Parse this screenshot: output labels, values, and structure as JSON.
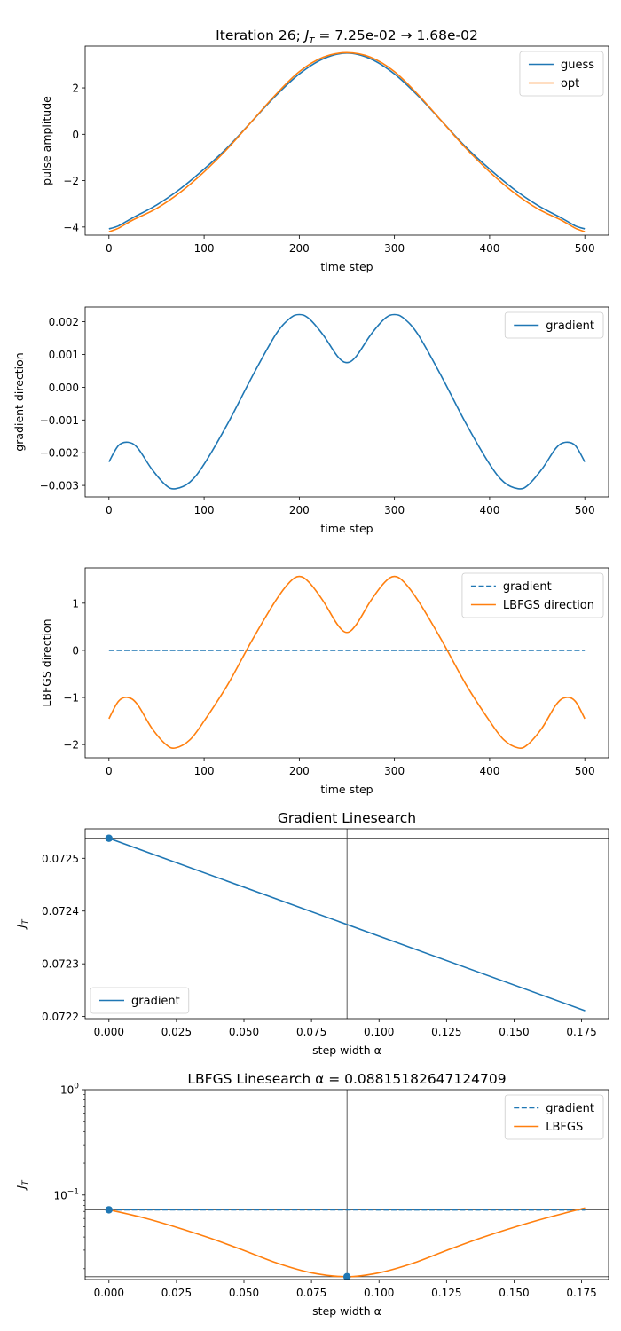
{
  "colors": {
    "blue": "#1f77b4",
    "orange": "#ff7f0e",
    "ref": "#333333"
  },
  "chart_data": [
    {
      "type": "line",
      "title_main": "Iteration 26; ",
      "title_sym": "J",
      "title_sub": "T",
      "title_rest": " = 7.25e-02 → 1.68e-02",
      "xlabel": "time step",
      "ylabel": "pulse amplitude",
      "xlim": [
        -25,
        525
      ],
      "ylim": [
        -4.35,
        3.8
      ],
      "xticks": [
        0,
        100,
        200,
        300,
        400,
        500
      ],
      "xtick_labels": [
        "0",
        "100",
        "200",
        "300",
        "400",
        "500"
      ],
      "yticks": [
        -4,
        -2,
        0,
        2
      ],
      "ytick_labels": [
        "−4",
        "−2",
        "0",
        "2"
      ],
      "legend_position": "upper right",
      "series": [
        {
          "name": "guess",
          "color": "blue",
          "dash": "solid",
          "x": [
            0,
            10,
            25,
            50,
            75,
            100,
            125,
            150,
            175,
            200,
            225,
            250,
            275,
            300,
            325,
            350,
            375,
            400,
            425,
            450,
            475,
            490,
            500
          ],
          "y": [
            -4.08,
            -3.95,
            -3.6,
            -3.05,
            -2.35,
            -1.5,
            -0.55,
            0.55,
            1.65,
            2.6,
            3.25,
            3.5,
            3.25,
            2.6,
            1.65,
            0.55,
            -0.55,
            -1.5,
            -2.35,
            -3.05,
            -3.6,
            -3.95,
            -4.08
          ]
        },
        {
          "name": "opt",
          "color": "orange",
          "dash": "solid",
          "x": [
            0,
            10,
            25,
            50,
            75,
            100,
            125,
            150,
            175,
            200,
            225,
            250,
            275,
            300,
            325,
            350,
            375,
            400,
            425,
            450,
            475,
            490,
            500
          ],
          "y": [
            -4.2,
            -4.05,
            -3.7,
            -3.2,
            -2.5,
            -1.62,
            -0.6,
            0.55,
            1.7,
            2.7,
            3.32,
            3.52,
            3.32,
            2.7,
            1.7,
            0.55,
            -0.6,
            -1.62,
            -2.5,
            -3.2,
            -3.7,
            -4.05,
            -4.2
          ]
        }
      ]
    },
    {
      "type": "line",
      "title": "",
      "xlabel": "time step",
      "ylabel": "gradient direction",
      "xlim": [
        -25,
        525
      ],
      "ylim": [
        -0.00335,
        0.00245
      ],
      "xticks": [
        0,
        100,
        200,
        300,
        400,
        500
      ],
      "xtick_labels": [
        "0",
        "100",
        "200",
        "300",
        "400",
        "500"
      ],
      "yticks": [
        -0.003,
        -0.002,
        -0.001,
        0.0,
        0.001,
        0.002
      ],
      "ytick_labels": [
        "−0.003",
        "−0.002",
        "−0.001",
        "0.000",
        "0.001",
        "0.002"
      ],
      "legend_position": "upper right",
      "series": [
        {
          "name": "gradient",
          "color": "blue",
          "dash": "solid",
          "x": [
            0,
            10,
            20,
            30,
            45,
            60,
            70,
            85,
            100,
            125,
            150,
            175,
            190,
            200,
            210,
            225,
            240,
            250,
            260,
            275,
            290,
            300,
            310,
            325,
            350,
            375,
            400,
            415,
            430,
            440,
            455,
            470,
            480,
            490,
            500
          ],
          "y": [
            -0.00228,
            -0.00178,
            -0.00168,
            -0.00185,
            -0.0025,
            -0.003,
            -0.0031,
            -0.0029,
            -0.00235,
            -0.0011,
            0.0003,
            0.0016,
            0.0021,
            0.00222,
            0.0021,
            0.0016,
            0.00095,
            0.00075,
            0.00095,
            0.0016,
            0.0021,
            0.00222,
            0.0021,
            0.0016,
            0.0003,
            -0.0011,
            -0.00235,
            -0.0029,
            -0.0031,
            -0.003,
            -0.0025,
            -0.00185,
            -0.00168,
            -0.00178,
            -0.00228
          ]
        }
      ]
    },
    {
      "type": "line",
      "title": "",
      "xlabel": "time step",
      "ylabel": "LBFGS direction",
      "xlim": [
        -25,
        525
      ],
      "ylim": [
        -2.28,
        1.75
      ],
      "xticks": [
        0,
        100,
        200,
        300,
        400,
        500
      ],
      "xtick_labels": [
        "0",
        "100",
        "200",
        "300",
        "400",
        "500"
      ],
      "yticks": [
        -2,
        -1,
        0,
        1
      ],
      "ytick_labels": [
        "−2",
        "−1",
        "0",
        "1"
      ],
      "legend_position": "upper right",
      "series": [
        {
          "name": "gradient",
          "color": "blue",
          "dash": "dashed",
          "x": [
            0,
            500
          ],
          "y": [
            0,
            0
          ]
        },
        {
          "name": "LBFGS direction",
          "color": "orange",
          "dash": "solid",
          "x": [
            0,
            10,
            20,
            30,
            45,
            60,
            70,
            85,
            100,
            125,
            150,
            175,
            190,
            200,
            210,
            225,
            240,
            250,
            260,
            275,
            290,
            300,
            310,
            325,
            350,
            375,
            400,
            415,
            430,
            440,
            455,
            470,
            480,
            490,
            500
          ],
          "y": [
            -1.45,
            -1.08,
            -1.0,
            -1.15,
            -1.65,
            -2.0,
            -2.07,
            -1.9,
            -1.5,
            -0.72,
            0.2,
            1.05,
            1.45,
            1.57,
            1.45,
            1.05,
            0.55,
            0.38,
            0.55,
            1.05,
            1.45,
            1.57,
            1.45,
            1.05,
            0.2,
            -0.72,
            -1.5,
            -1.9,
            -2.07,
            -2.0,
            -1.65,
            -1.15,
            -1.0,
            -1.08,
            -1.45
          ]
        }
      ]
    },
    {
      "type": "line",
      "title": "Gradient Linesearch",
      "xlabel": "step width α",
      "ylabel_sym": "J",
      "ylabel_sub": "T",
      "xlim": [
        -0.0088,
        0.185
      ],
      "ylim": [
        0.072196,
        0.072556
      ],
      "xticks": [
        0.0,
        0.025,
        0.05,
        0.075,
        0.1,
        0.125,
        0.15,
        0.175
      ],
      "xtick_labels": [
        "0.000",
        "0.025",
        "0.050",
        "0.075",
        "0.100",
        "0.125",
        "0.150",
        "0.175"
      ],
      "yticks": [
        0.0722,
        0.0723,
        0.0724,
        0.0725
      ],
      "ytick_labels": [
        "0.0722",
        "0.0723",
        "0.0724",
        "0.0725"
      ],
      "legend_position": "lower left",
      "series": [
        {
          "name": "gradient",
          "color": "blue",
          "dash": "solid",
          "x": [
            0.0,
            0.1763
          ],
          "y": [
            0.072538,
            0.072211
          ]
        }
      ],
      "markers": [
        {
          "x": 0.0,
          "y": 0.072538,
          "color": "blue"
        }
      ],
      "ref_x": 0.08815,
      "ref_y": 0.072538
    },
    {
      "type": "line",
      "title": "LBFGS Linesearch α = 0.08815182647124709",
      "xlabel": "step width α",
      "ylabel_sym": "J",
      "ylabel_sub": "T",
      "yscale": "log",
      "xlim": [
        -0.0088,
        0.185
      ],
      "ylim": [
        0.0158,
        1.0
      ],
      "xticks": [
        0.0,
        0.025,
        0.05,
        0.075,
        0.1,
        0.125,
        0.15,
        0.175
      ],
      "xtick_labels": [
        "0.000",
        "0.025",
        "0.050",
        "0.075",
        "0.100",
        "0.125",
        "0.150",
        "0.175"
      ],
      "yticks": [
        0.1,
        1.0
      ],
      "ytick_base": "10",
      "ytick_exps": [
        "−1",
        "0"
      ],
      "minor_yticks": [
        0.02,
        0.03,
        0.04,
        0.05,
        0.06,
        0.07,
        0.08,
        0.09,
        0.2,
        0.3,
        0.4,
        0.5,
        0.6,
        0.7,
        0.8,
        0.9
      ],
      "legend_position": "upper right",
      "series": [
        {
          "name": "gradient",
          "color": "blue",
          "dash": "dashed",
          "x": [
            0.0,
            0.1763
          ],
          "y": [
            0.0725,
            0.0722
          ]
        },
        {
          "name": "LBFGS",
          "color": "orange",
          "dash": "solid",
          "x": [
            0.0,
            0.0125,
            0.025,
            0.0375,
            0.05,
            0.0625,
            0.075,
            0.08815,
            0.1,
            0.1125,
            0.125,
            0.1375,
            0.15,
            0.1625,
            0.1763
          ],
          "y": [
            0.0725,
            0.0612,
            0.0495,
            0.039,
            0.0298,
            0.0225,
            0.0183,
            0.0168,
            0.0183,
            0.0225,
            0.0298,
            0.039,
            0.0495,
            0.0612,
            0.0755
          ]
        }
      ],
      "markers": [
        {
          "x": 0.0,
          "y": 0.0725,
          "color": "blue"
        },
        {
          "x": 0.08815,
          "y": 0.0168,
          "color": "blue"
        }
      ],
      "ref_x": 0.08815,
      "ref_ys": [
        0.0725,
        0.0168
      ]
    }
  ]
}
